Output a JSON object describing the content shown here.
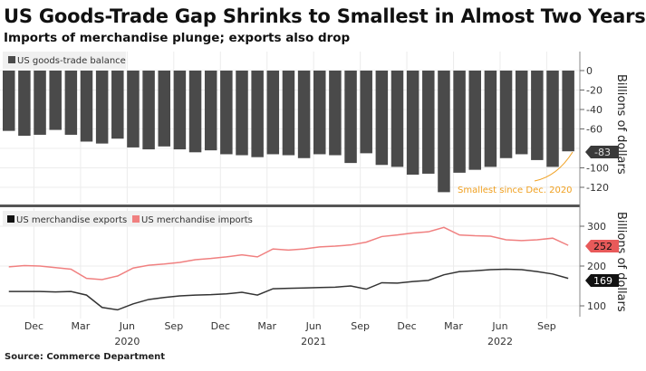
{
  "header": {
    "title": "US Goods-Trade Gap Shrinks to Smallest in Almost Two Years",
    "subtitle": "Imports of merchandise plunge; exports also drop"
  },
  "footer": {
    "source": "Source: Commerce Department"
  },
  "colors": {
    "bars": "#4a4a4a",
    "exports": "#333333",
    "imports": "#f08080",
    "annotation": "#f0a020",
    "grid": "#e6e6e6",
    "import_label_bg": "#e85a5a",
    "export_label_bg": "#111111"
  },
  "chart_data": [
    {
      "type": "bar",
      "legend": [
        "US goods-trade balance"
      ],
      "legend_position": "top-left",
      "ylabel": "Billions of dollars",
      "ylim": [
        -130,
        0
      ],
      "yticks": [
        "0",
        "-20",
        "-40",
        "-60",
        "-100",
        "-120"
      ],
      "ytick_values": [
        0,
        -20,
        -40,
        -60,
        -100,
        -120
      ],
      "months": [
        "Oct 2019",
        "Nov 2019",
        "Dec 2019",
        "Jan 2020",
        "Feb 2020",
        "Mar 2020",
        "Apr 2020",
        "May 2020",
        "Jun 2020",
        "Jul 2020",
        "Aug 2020",
        "Sep 2020",
        "Oct 2020",
        "Nov 2020",
        "Dec 2020",
        "Jan 2021",
        "Feb 2021",
        "Mar 2021",
        "Apr 2021",
        "May 2021",
        "Jun 2021",
        "Jul 2021",
        "Aug 2021",
        "Sep 2021",
        "Oct 2021",
        "Nov 2021",
        "Dec 2021",
        "Jan 2022",
        "Feb 2022",
        "Mar 2022",
        "Apr 2022",
        "May 2022",
        "Jun 2022",
        "Jul 2022",
        "Aug 2022",
        "Sep 2022",
        "Oct 2022"
      ],
      "values": [
        -62,
        -67,
        -66,
        -61,
        -66,
        -73,
        -75,
        -70,
        -79,
        -81,
        -78,
        -81,
        -84,
        -82,
        -86,
        -87,
        -89,
        -86,
        -87,
        -90,
        -86,
        -87,
        -95,
        -85,
        -97,
        -99,
        -107,
        -106,
        -125,
        -105,
        -102,
        -99,
        -90,
        -86,
        -92,
        -99,
        -83
      ],
      "last_value_label": "-83",
      "annotation": "Smallest since Dec. 2020",
      "grid": true
    },
    {
      "type": "line",
      "legend_position": "top-left",
      "ylabel": "Billions of dollars",
      "ylim": [
        80,
        330
      ],
      "yticks": [
        "300",
        "200",
        "100"
      ],
      "ytick_values": [
        300,
        200,
        100
      ],
      "series": [
        {
          "name": "US merchandise exports",
          "last_label": "169",
          "values": [
            136,
            136,
            136,
            135,
            136,
            127,
            96,
            90,
            105,
            116,
            121,
            125,
            127,
            128,
            130,
            134,
            127,
            143,
            144,
            145,
            146,
            147,
            150,
            142,
            158,
            157,
            161,
            164,
            178,
            186,
            188,
            191,
            192,
            191,
            186,
            180,
            169
          ]
        },
        {
          "name": "US merchandise imports",
          "last_label": "252",
          "values": [
            198,
            201,
            200,
            196,
            192,
            169,
            166,
            175,
            195,
            202,
            205,
            209,
            216,
            219,
            223,
            228,
            223,
            243,
            240,
            243,
            248,
            250,
            253,
            260,
            274,
            278,
            283,
            286,
            297,
            278,
            276,
            275,
            266,
            264,
            266,
            270,
            252
          ]
        }
      ],
      "x_tick_labels": [
        "Dec",
        "Mar",
        "Jun",
        "Sep",
        "Dec",
        "Mar",
        "Jun",
        "Sep",
        "Dec",
        "Mar",
        "Jun",
        "Sep"
      ],
      "x_tick_months": [
        "Dec 2019",
        "Mar 2020",
        "Jun 2020",
        "Sep 2020",
        "Dec 2020",
        "Mar 2021",
        "Jun 2021",
        "Sep 2021",
        "Dec 2021",
        "Mar 2022",
        "Jun 2022",
        "Sep 2022"
      ],
      "year_labels": [
        "2020",
        "2021",
        "2022"
      ],
      "year_label_months": [
        "Jun 2020",
        "Jun 2021",
        "Jun 2022"
      ],
      "grid": true
    }
  ]
}
